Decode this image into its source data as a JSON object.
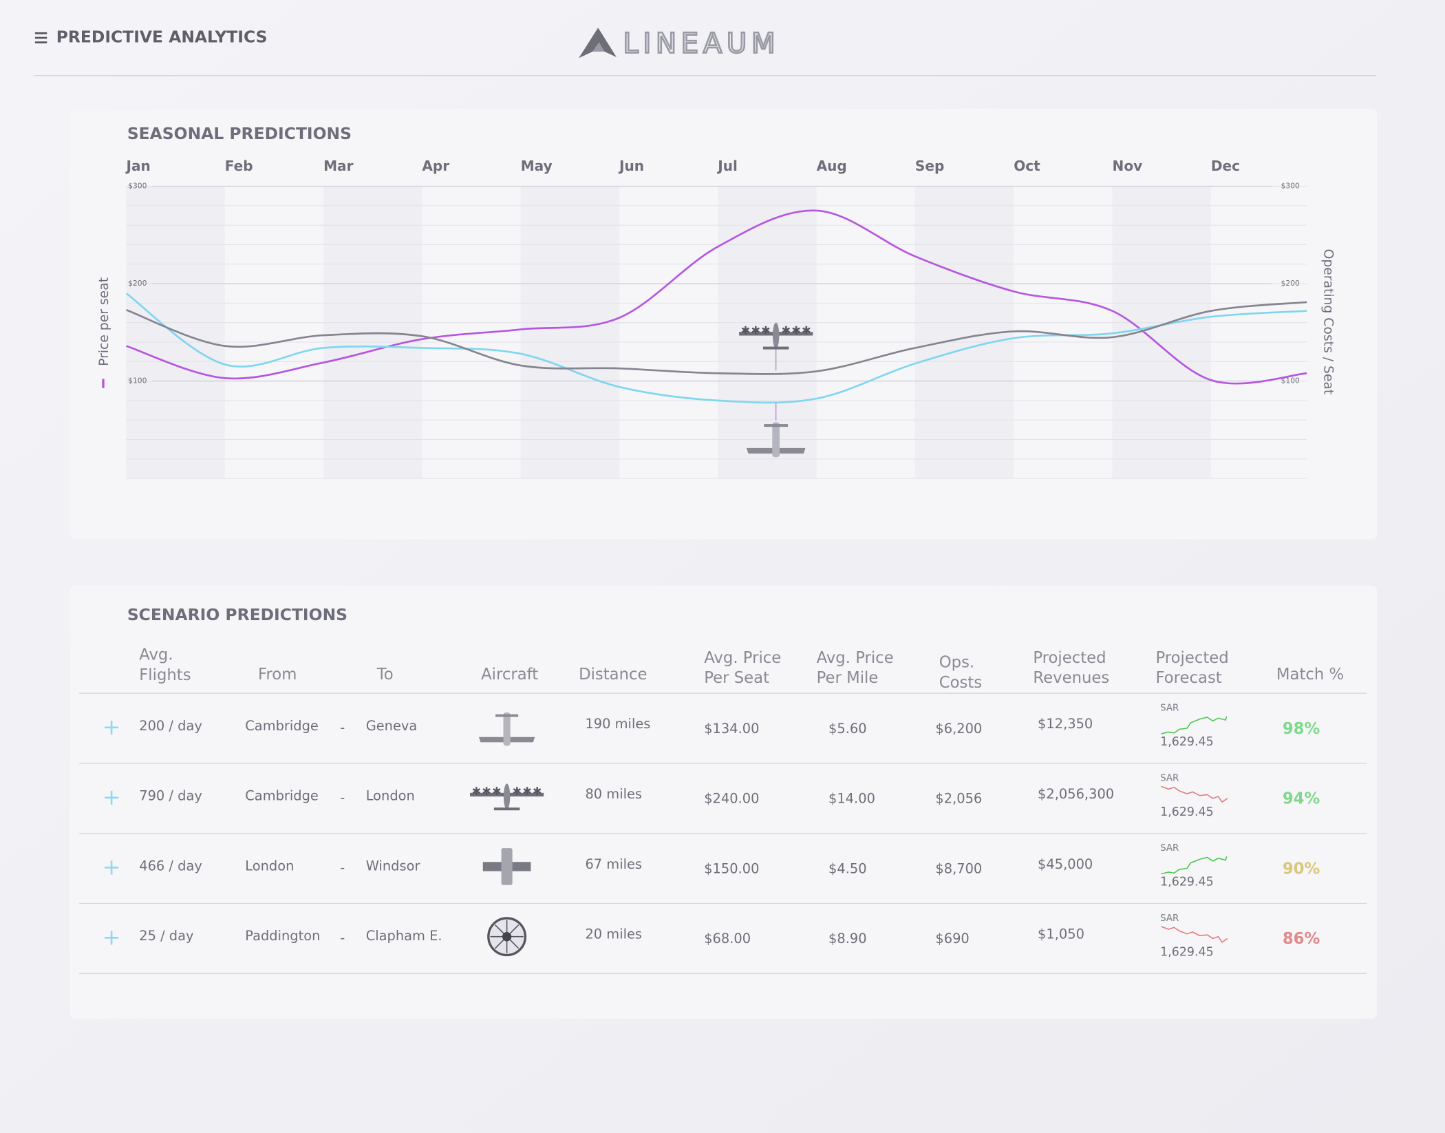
{
  "header": {
    "title": "PREDICTIVE ANALYTICS",
    "logo": "LINEAUM"
  },
  "chart_data": {
    "type": "line",
    "title": "SEASONAL PREDICTIONS",
    "ylabel": "Price per seat",
    "y2label": "Operating Costs / Seat",
    "categories": [
      "Jan",
      "Feb",
      "Mar",
      "Apr",
      "May",
      "Jun",
      "Jul",
      "Aug",
      "Sep",
      "Oct",
      "Nov",
      "Dec",
      null
    ],
    "series": [
      {
        "color": "#b656e0",
        "values": [
          136,
          103,
          119,
          143,
          153,
          165,
          238,
          275,
          228,
          192,
          172,
          101,
          108
        ]
      },
      {
        "color": "#7fd6f0",
        "axis": "y2",
        "values": [
          190,
          117,
          134,
          134,
          128,
          94,
          80,
          82,
          118,
          144,
          149,
          166,
          172
        ]
      },
      {
        "color": "#85848f",
        "axis": "y2",
        "values": [
          173,
          136,
          147,
          146,
          116,
          113,
          108,
          110,
          134,
          151,
          145,
          172,
          181
        ]
      }
    ],
    "ylim": [
      0,
      300
    ],
    "yticks": [
      {
        "value": 100,
        "label": "$100"
      },
      {
        "value": 200,
        "label": "$200"
      },
      {
        "value": 300,
        "label": "$300"
      }
    ],
    "y2lim": [
      0,
      300
    ],
    "y2ticks": [
      {
        "value": 100,
        "label": "$100"
      },
      {
        "value": 200,
        "label": "$200"
      },
      {
        "value": 300,
        "label": "$300"
      }
    ],
    "grid": true
  },
  "table": {
    "title": "SCENARIO PREDICTIONS",
    "route_separator": "-",
    "headers": [
      [
        "Avg.",
        "Flights"
      ],
      [
        "From"
      ],
      [
        "To"
      ],
      [
        "Aircraft"
      ],
      [
        "Distance"
      ],
      [
        "Avg. Price",
        "Per Seat"
      ],
      [
        "Avg. Price",
        "Per Mile"
      ],
      [
        "Ops.",
        "Costs"
      ],
      [
        "Projected",
        "Revenues"
      ],
      [
        "Projected",
        "Forecast"
      ],
      [
        "Match %"
      ]
    ],
    "rows": [
      {
        "flights": "200 / day",
        "from": "Cambridge",
        "to": "Geneva",
        "distance": "190 miles",
        "price_seat": "$134.00",
        "price_mile": "$5.60",
        "ops": "$6,200",
        "revenue": "$12,350",
        "forecast": {
          "currency": "SAR",
          "value": "1,629.45",
          "color": "#4cc94c"
        },
        "match": "98%",
        "match_color": "#7ed98a"
      },
      {
        "flights": "790 / day",
        "from": "Cambridge",
        "to": "London",
        "distance": "80 miles",
        "price_seat": "$240.00",
        "price_mile": "$14.00",
        "ops": "$2,056",
        "revenue": "$2,056,300",
        "forecast": {
          "currency": "SAR",
          "value": "1,629.45",
          "color": "#e07b7b"
        },
        "match": "94%",
        "match_color": "#7ed98a"
      },
      {
        "flights": "466 / day",
        "from": "London",
        "to": "Windsor",
        "distance": "67 miles",
        "price_seat": "$150.00",
        "price_mile": "$4.50",
        "ops": "$8,700",
        "revenue": "$45,000",
        "forecast": {
          "currency": "SAR",
          "value": "1,629.45",
          "color": "#4cc94c"
        },
        "match": "90%",
        "match_color": "#d9c77a"
      },
      {
        "flights": "25 / day",
        "from": "Paddington",
        "to": "Clapham E.",
        "distance": "20 miles",
        "price_seat": "$68.00",
        "price_mile": "$8.90",
        "ops": "$690",
        "revenue": "$1,050",
        "forecast": {
          "currency": "SAR",
          "value": "1,629.45",
          "color": "#e07b7b"
        },
        "match": "86%",
        "match_color": "#e08a8a"
      }
    ]
  }
}
